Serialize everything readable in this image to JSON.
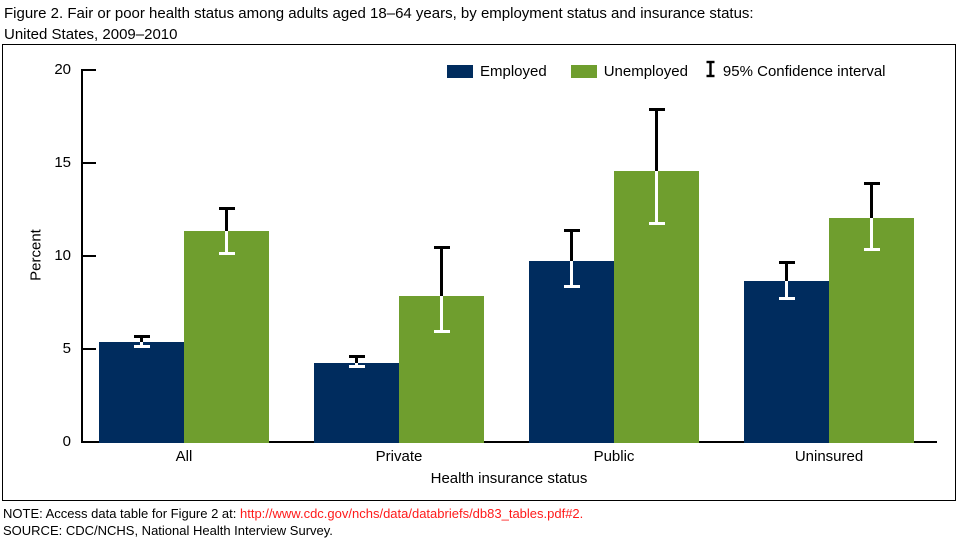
{
  "title": {
    "line1": "Figure 2. Fair or poor health status among adults aged 18–64 years, by employment status and insurance status:",
    "line2": "United States, 2009–2010"
  },
  "legend": {
    "employed_label": "Employed",
    "unemployed_label": "Unemployed",
    "ci_label": "95% Confidence interval"
  },
  "colors": {
    "employed": "#002c5e",
    "unemployed": "#6f9e2e",
    "axis": "#000000",
    "ci_outside": "#000000",
    "ci_inside": "#ffffff",
    "link_red": "#ff1a1a"
  },
  "chart_data": {
    "type": "bar",
    "title": "Fair or poor health status among adults aged 18–64 years, by employment status and insurance status: United States, 2009–2010",
    "categories": [
      "All",
      "Private",
      "Public",
      "Uninsured"
    ],
    "series": [
      {
        "name": "Employed",
        "color_key": "employed",
        "values": [
          5.3,
          4.2,
          9.7,
          8.6
        ],
        "ci_low": [
          5.0,
          3.9,
          8.2,
          7.6
        ],
        "ci_high": [
          5.7,
          4.6,
          11.4,
          9.7
        ]
      },
      {
        "name": "Unemployed",
        "color_key": "unemployed",
        "values": [
          11.3,
          7.8,
          14.5,
          12.0
        ],
        "ci_low": [
          10.0,
          5.8,
          11.6,
          10.2
        ],
        "ci_high": [
          12.6,
          10.5,
          17.9,
          13.9
        ]
      }
    ],
    "xlabel": "Health insurance status",
    "ylabel": "Percent",
    "ylim": [
      0,
      20
    ],
    "yticks": [
      0,
      5,
      10,
      15,
      20
    ],
    "grid": false,
    "legend_position": "top-right",
    "error_bars": "95% confidence interval, drawn black above bar top and white inside bar"
  },
  "footnotes": {
    "note_prefix": "NOTE: Access data table for Figure 2 at: ",
    "note_link": "http://www.cdc.gov/nchs/data/databriefs/db83_tables.pdf#2",
    "note_suffix": ".",
    "source": "SOURCE: CDC/NCHS, National Health Interview Survey."
  }
}
